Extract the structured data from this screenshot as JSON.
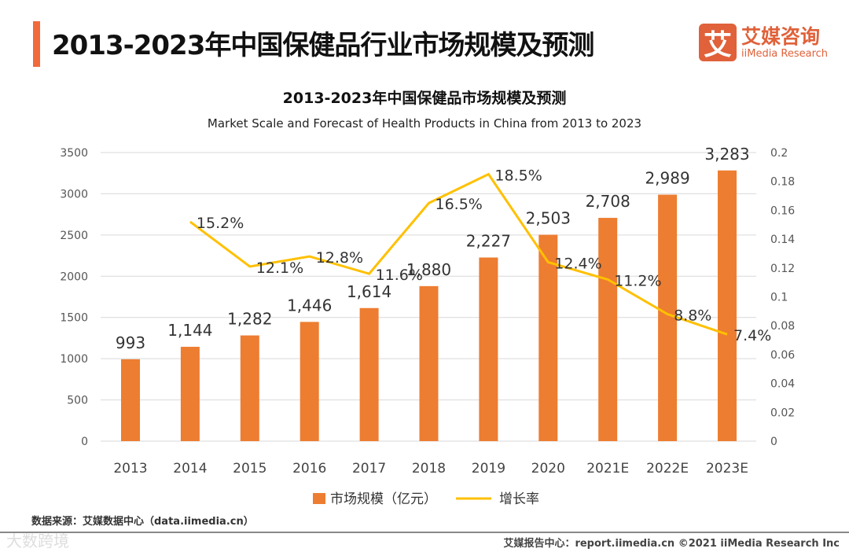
{
  "header": {
    "title": "2013-2023年中国保健品行业市场规模及预测",
    "logo_cn": "艾媒咨询",
    "logo_en": "iiMedia Research",
    "logo_mark": "艾"
  },
  "chart_data": {
    "type": "bar+line",
    "title": "2013-2023年中国保健品市场规模及预测",
    "subtitle": "Market Scale and Forecast of Health Products in China from 2013 to 2023",
    "categories": [
      "2013",
      "2014",
      "2015",
      "2016",
      "2017",
      "2018",
      "2019",
      "2020",
      "2021E",
      "2022E",
      "2023E"
    ],
    "series": [
      {
        "name": "市场规模（亿元）",
        "type": "bar",
        "axis": "left",
        "color": "#ed7d31",
        "values": [
          993,
          1144,
          1282,
          1446,
          1614,
          1880,
          2227,
          2503,
          2708,
          2989,
          3283
        ],
        "labels": [
          "993",
          "1,144",
          "1,282",
          "1,446",
          "1,614",
          "1,880",
          "2,227",
          "2,503",
          "2,708",
          "2,989",
          "3,283"
        ]
      },
      {
        "name": "增长率",
        "type": "line",
        "axis": "right",
        "color": "#ffc000",
        "values": [
          null,
          0.152,
          0.121,
          0.128,
          0.116,
          0.165,
          0.185,
          0.124,
          0.112,
          0.088,
          0.074
        ],
        "labels": [
          "",
          "15.2%",
          "12.1%",
          "12.8%",
          "11.6%",
          "16.5%",
          "18.5%",
          "12.4%",
          "11.2%",
          "8.8%",
          "7.4%"
        ]
      }
    ],
    "ylim": [
      0,
      3500
    ],
    "yticks": [
      "0",
      "500",
      "1000",
      "1500",
      "2000",
      "2500",
      "3000",
      "3500"
    ],
    "y2lim": [
      0,
      0.2
    ],
    "y2ticks": [
      "0",
      "0.02",
      "0.04",
      "0.06",
      "0.08",
      "0.1",
      "0.12",
      "0.14",
      "0.16",
      "0.18",
      "0.2"
    ],
    "grid": true,
    "legend": "bottom"
  },
  "footer": {
    "source": "数据来源：艾媒数据中心（data.iimedia.cn）",
    "credit": "艾媒报告中心：report.iimedia.cn  ©2021  iiMedia Research  Inc",
    "watermark": "大数跨境"
  }
}
